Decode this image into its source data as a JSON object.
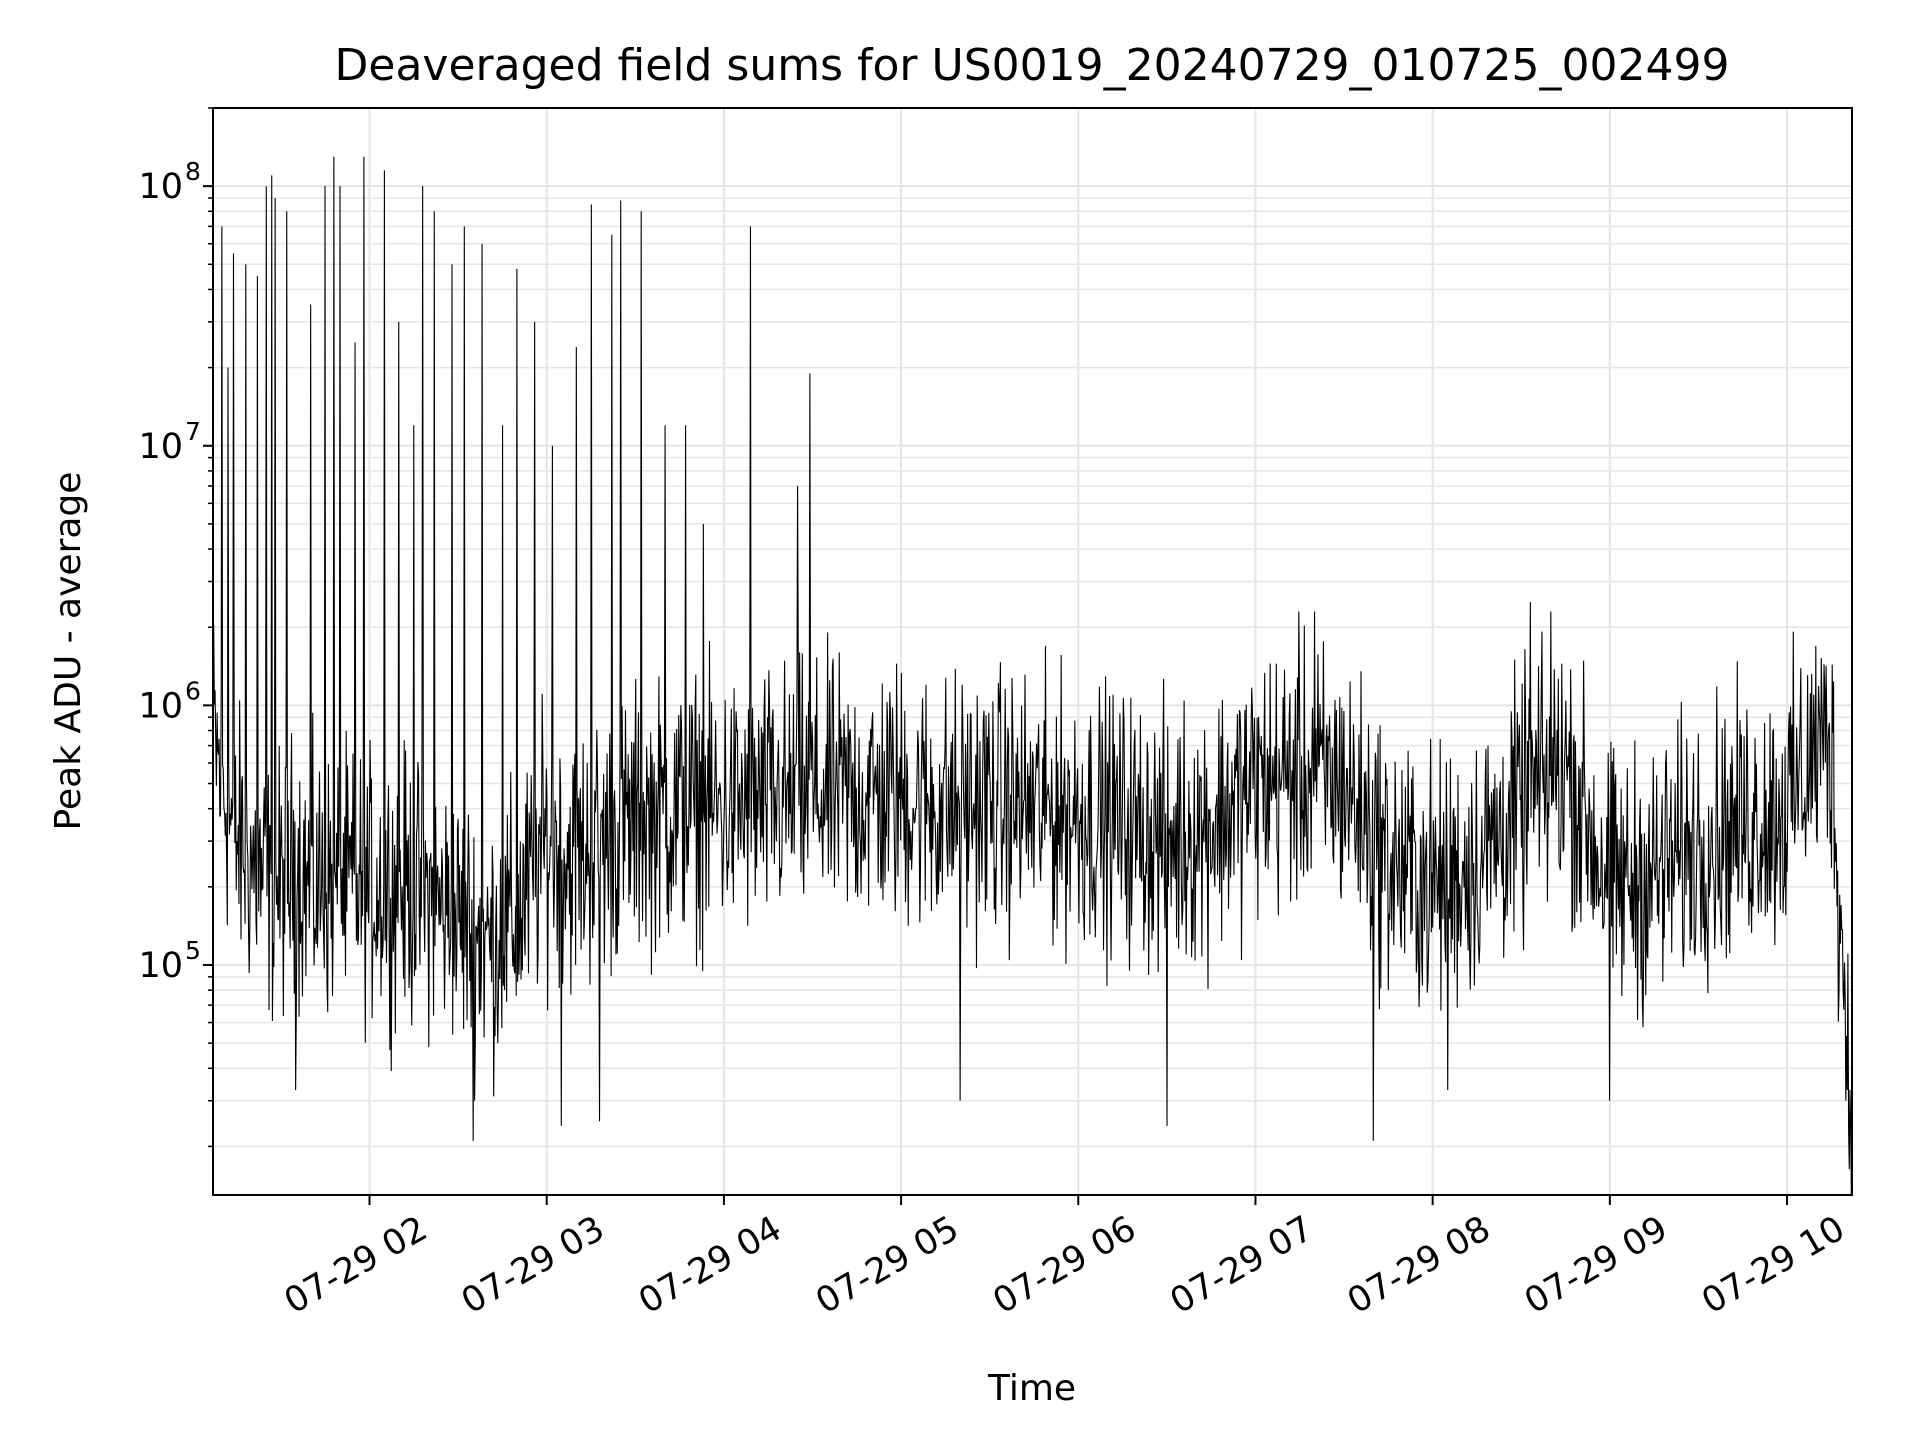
{
  "chart_data": {
    "type": "line",
    "title": "Deaveraged field sums for US0019_20240729_010725_002499",
    "xlabel": "Time",
    "ylabel": "Peak ADU - average",
    "yscale": "log",
    "ylim": [
      13000,
      200000000
    ],
    "xlim": [
      "2024-07-29 01:07",
      "2024-07-29 10:22"
    ],
    "x_ticks": [
      {
        "time": "2024-07-29 02:00",
        "label": "07-29 02"
      },
      {
        "time": "2024-07-29 03:00",
        "label": "07-29 03"
      },
      {
        "time": "2024-07-29 04:00",
        "label": "07-29 04"
      },
      {
        "time": "2024-07-29 05:00",
        "label": "07-29 05"
      },
      {
        "time": "2024-07-29 06:00",
        "label": "07-29 06"
      },
      {
        "time": "2024-07-29 07:00",
        "label": "07-29 07"
      },
      {
        "time": "2024-07-29 08:00",
        "label": "07-29 08"
      },
      {
        "time": "2024-07-29 09:00",
        "label": "07-29 09"
      },
      {
        "time": "2024-07-29 10:00",
        "label": "07-29 10"
      }
    ],
    "y_ticks": [
      {
        "value": 100000,
        "base": "10",
        "exp": "5"
      },
      {
        "value": 1000000,
        "base": "10",
        "exp": "6"
      },
      {
        "value": 10000000,
        "base": "10",
        "exp": "7"
      },
      {
        "value": 100000000,
        "base": "10",
        "exp": "8"
      }
    ],
    "grid": true,
    "line_color": "#000000",
    "grid_color": "#e5e5e5",
    "series": [
      {
        "x": [
          "2024-07-29 01:07",
          "2024-07-29 01:10",
          "2024-07-29 01:15",
          "2024-07-29 01:20",
          "2024-07-29 01:25",
          "2024-07-29 01:30",
          "2024-07-29 01:35",
          "2024-07-29 01:40",
          "2024-07-29 01:45",
          "2024-07-29 01:50",
          "2024-07-29 01:55",
          "2024-07-29 02:00",
          "2024-07-29 02:10",
          "2024-07-29 02:20",
          "2024-07-29 02:30",
          "2024-07-29 02:40",
          "2024-07-29 02:50",
          "2024-07-29 03:00",
          "2024-07-29 03:10",
          "2024-07-29 03:20",
          "2024-07-29 03:30",
          "2024-07-29 03:40",
          "2024-07-29 03:50",
          "2024-07-29 04:00",
          "2024-07-29 04:15",
          "2024-07-29 04:30",
          "2024-07-29 04:45",
          "2024-07-29 05:00",
          "2024-07-29 05:15",
          "2024-07-29 05:30",
          "2024-07-29 05:45",
          "2024-07-29 06:00",
          "2024-07-29 06:15",
          "2024-07-29 06:30",
          "2024-07-29 06:45",
          "2024-07-29 07:00",
          "2024-07-29 07:15",
          "2024-07-29 07:30",
          "2024-07-29 07:45",
          "2024-07-29 08:00",
          "2024-07-29 08:15",
          "2024-07-29 08:30",
          "2024-07-29 08:45",
          "2024-07-29 09:00",
          "2024-07-29 09:15",
          "2024-07-29 09:30",
          "2024-07-29 09:45",
          "2024-07-29 10:00",
          "2024-07-29 10:10",
          "2024-07-29 10:15",
          "2024-07-29 10:20",
          "2024-07-29 10:22"
        ],
        "y": [
          800000,
          500000,
          300000,
          250000,
          200000,
          200000,
          250000,
          200000,
          200000,
          200000,
          200000,
          200000,
          200000,
          180000,
          150000,
          120000,
          150000,
          300000,
          250000,
          300000,
          350000,
          380000,
          400000,
          400000,
          420000,
          450000,
          450000,
          450000,
          400000,
          420000,
          400000,
          380000,
          350000,
          300000,
          350000,
          500000,
          550000,
          500000,
          250000,
          200000,
          250000,
          400000,
          600000,
          200000,
          220000,
          300000,
          350000,
          400000,
          700000,
          700000,
          60000,
          23000
        ],
        "spikes": [
          {
            "x": "2024-07-29 01:10",
            "y": 70000000
          },
          {
            "x": "2024-07-29 01:12",
            "y": 20000000
          },
          {
            "x": "2024-07-29 01:14",
            "y": 55000000
          },
          {
            "x": "2024-07-29 01:18",
            "y": 50000000
          },
          {
            "x": "2024-07-29 01:22",
            "y": 45000000
          },
          {
            "x": "2024-07-29 01:25",
            "y": 100000000
          },
          {
            "x": "2024-07-29 01:27",
            "y": 110000000
          },
          {
            "x": "2024-07-29 01:28",
            "y": 90000000
          },
          {
            "x": "2024-07-29 01:32",
            "y": 80000000
          },
          {
            "x": "2024-07-29 01:35",
            "y": 100000000
          },
          {
            "x": "2024-07-29 01:40",
            "y": 35000000
          },
          {
            "x": "2024-07-29 01:45",
            "y": 100000000
          },
          {
            "x": "2024-07-29 01:48",
            "y": 130000000
          },
          {
            "x": "2024-07-29 01:50",
            "y": 100000000
          },
          {
            "x": "2024-07-29 01:55",
            "y": 25000000
          },
          {
            "x": "2024-07-29 01:58",
            "y": 130000000
          },
          {
            "x": "2024-07-29 02:05",
            "y": 115000000
          },
          {
            "x": "2024-07-29 02:10",
            "y": 30000000
          },
          {
            "x": "2024-07-29 02:15",
            "y": 12000000
          },
          {
            "x": "2024-07-29 02:18",
            "y": 100000000
          },
          {
            "x": "2024-07-29 02:22",
            "y": 80000000
          },
          {
            "x": "2024-07-29 02:28",
            "y": 50000000
          },
          {
            "x": "2024-07-29 02:32",
            "y": 70000000
          },
          {
            "x": "2024-07-29 02:38",
            "y": 60000000
          },
          {
            "x": "2024-07-29 02:45",
            "y": 12000000
          },
          {
            "x": "2024-07-29 02:50",
            "y": 48000000
          },
          {
            "x": "2024-07-29 02:56",
            "y": 30000000
          },
          {
            "x": "2024-07-29 03:02",
            "y": 10000000
          },
          {
            "x": "2024-07-29 03:10",
            "y": 24000000
          },
          {
            "x": "2024-07-29 03:15",
            "y": 85000000
          },
          {
            "x": "2024-07-29 03:22",
            "y": 65000000
          },
          {
            "x": "2024-07-29 03:25",
            "y": 88000000
          },
          {
            "x": "2024-07-29 03:32",
            "y": 80000000
          },
          {
            "x": "2024-07-29 03:40",
            "y": 12000000
          },
          {
            "x": "2024-07-29 03:47",
            "y": 12000000
          },
          {
            "x": "2024-07-29 03:53",
            "y": 5000000
          },
          {
            "x": "2024-07-29 04:09",
            "y": 70000000
          },
          {
            "x": "2024-07-29 04:25",
            "y": 7000000
          },
          {
            "x": "2024-07-29 04:29",
            "y": 19000000
          },
          {
            "x": "2024-07-29 07:20",
            "y": 2300000
          },
          {
            "x": "2024-07-29 08:33",
            "y": 2500000
          },
          {
            "x": "2024-07-29 08:40",
            "y": 2300000
          }
        ],
        "dips": [
          {
            "x": "2024-07-29 01:35",
            "y": 33000
          },
          {
            "x": "2024-07-29 02:35",
            "y": 21000
          },
          {
            "x": "2024-07-29 03:05",
            "y": 24000
          },
          {
            "x": "2024-07-29 03:18",
            "y": 25000
          },
          {
            "x": "2024-07-29 05:20",
            "y": 30000
          },
          {
            "x": "2024-07-29 06:30",
            "y": 24000
          },
          {
            "x": "2024-07-29 07:40",
            "y": 21000
          },
          {
            "x": "2024-07-29 08:05",
            "y": 33000
          },
          {
            "x": "2024-07-29 09:00",
            "y": 30000
          },
          {
            "x": "2024-07-29 10:22",
            "y": 23000
          }
        ]
      }
    ]
  }
}
